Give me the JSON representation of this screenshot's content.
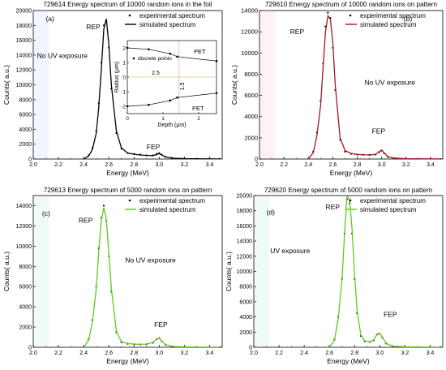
{
  "chart_data": [
    {
      "type": "line",
      "panel": "(a)",
      "title": "729614 Energy spectrum of 10000 random ions in the foil",
      "xlabel": "Energy (MeV)",
      "ylabel": "Counts( a.u.)",
      "xlim": [
        2.0,
        3.5
      ],
      "ylim": [
        0,
        20000
      ],
      "xticks": [
        "2.0",
        "2.2",
        "2.4",
        "2.6",
        "2.8",
        "3.0",
        "3.2",
        "3.4"
      ],
      "yticks": [
        "0",
        "2000",
        "4000",
        "6000",
        "8000",
        "10000",
        "12000",
        "14000",
        "16000",
        "18000",
        "20000"
      ],
      "legend": [
        "experimental spectrum",
        "simulated spectrum"
      ],
      "legend_position": "top-right",
      "annotations": [
        "REP",
        "FEP",
        "No UV exposure"
      ],
      "series": [
        {
          "name": "experimental spectrum",
          "style": "dots",
          "color": "#000000",
          "x": [
            2.4,
            2.44,
            2.47,
            2.5,
            2.52,
            2.54,
            2.56,
            2.58,
            2.6,
            2.62,
            2.66,
            2.7,
            2.75,
            2.8,
            2.85,
            2.9,
            2.95,
            2.98,
            3.0,
            3.02,
            3.05,
            3.1,
            3.2,
            3.3,
            3.4,
            3.48
          ],
          "y": [
            0,
            500,
            1500,
            3800,
            7500,
            13000,
            18000,
            18500,
            15000,
            9500,
            3500,
            1400,
            800,
            700,
            600,
            500,
            500,
            700,
            800,
            600,
            300,
            150,
            80,
            50,
            30,
            20
          ]
        },
        {
          "name": "simulated spectrum",
          "style": "line",
          "color": "#000000",
          "x": [
            2.4,
            2.44,
            2.47,
            2.5,
            2.52,
            2.54,
            2.56,
            2.58,
            2.6,
            2.62,
            2.66,
            2.7,
            2.75,
            2.8,
            2.85,
            2.9,
            2.95,
            2.98,
            3.0,
            3.02,
            3.05,
            3.1,
            3.2,
            3.3,
            3.4,
            3.48
          ],
          "y": [
            0,
            400,
            1300,
            3500,
            7000,
            12000,
            17500,
            18900,
            15500,
            10000,
            3800,
            1500,
            800,
            650,
            550,
            480,
            450,
            600,
            750,
            550,
            280,
            120,
            60,
            40,
            25,
            15
          ]
        }
      ],
      "inset": {
        "xlabel": "Depth (μm)",
        "ylabel": "Radius (μm)",
        "xlim": [
          0,
          2.5
        ],
        "ylim": [
          -2.5,
          2.5
        ],
        "xticks": [
          "0",
          "1",
          "2"
        ],
        "yticks": [
          "-2",
          "-1",
          "0",
          "1",
          "2"
        ],
        "legend": [
          "discrete points"
        ],
        "annotations": [
          "PET",
          "PET",
          "2.5",
          "1.5"
        ],
        "series": [
          {
            "name": "discrete points",
            "x": [
              0,
              0.6,
              1.2,
              1.4,
              2.5
            ],
            "y": [
              2.0,
              1.9,
              1.6,
              1.4,
              1.1
            ]
          },
          {
            "name": "discrete points",
            "x": [
              0,
              0.6,
              1.2,
              1.4,
              2.5
            ],
            "y": [
              -2.0,
              -1.9,
              -1.6,
              -1.4,
              -1.1
            ]
          }
        ]
      }
    },
    {
      "type": "line",
      "panel": "(b)",
      "title": "729610 Energy spectrum of 10000 random ions on pattern",
      "xlabel": "Energy (MeV)",
      "ylabel": "Counts( a.u.)",
      "xlim": [
        2.0,
        3.5
      ],
      "ylim": [
        0,
        14000
      ],
      "xticks": [
        "2.0",
        "2.2",
        "2.4",
        "2.6",
        "2.8",
        "3.0",
        "3.2",
        "3.4"
      ],
      "yticks": [
        "0",
        "2000",
        "4000",
        "6000",
        "8000",
        "10000",
        "12000",
        "14000"
      ],
      "legend": [
        "experimental spectrum",
        "simulated spectrum"
      ],
      "legend_position": "top-right",
      "annotations": [
        "REP",
        "No UV exposure",
        "FEP"
      ],
      "series": [
        {
          "name": "experimental spectrum",
          "style": "dots",
          "color": "#000000",
          "x": [
            2.4,
            2.44,
            2.47,
            2.5,
            2.52,
            2.54,
            2.56,
            2.58,
            2.6,
            2.62,
            2.66,
            2.7,
            2.75,
            2.8,
            2.85,
            2.9,
            2.95,
            2.98,
            3.0,
            3.02,
            3.05,
            3.1,
            3.2,
            3.3,
            3.4,
            3.48
          ],
          "y": [
            0,
            700,
            2500,
            5500,
            9000,
            12500,
            13800,
            13300,
            10500,
            6500,
            1800,
            700,
            500,
            420,
            400,
            380,
            420,
            650,
            800,
            550,
            200,
            80,
            40,
            20,
            15,
            10
          ]
        },
        {
          "name": "simulated spectrum",
          "style": "line",
          "color": "#a0181e",
          "x": [
            2.4,
            2.44,
            2.47,
            2.5,
            2.52,
            2.54,
            2.56,
            2.58,
            2.6,
            2.62,
            2.66,
            2.7,
            2.75,
            2.8,
            2.85,
            2.9,
            2.95,
            2.98,
            3.0,
            3.02,
            3.05,
            3.1,
            3.2,
            3.3,
            3.4,
            3.48
          ],
          "y": [
            0,
            600,
            2200,
            5000,
            8500,
            12000,
            13500,
            13200,
            11000,
            7000,
            2000,
            800,
            520,
            430,
            400,
            390,
            430,
            700,
            850,
            580,
            220,
            90,
            40,
            20,
            15,
            10
          ]
        }
      ]
    },
    {
      "type": "line",
      "panel": "(c)",
      "title": "729613 Energy spectrum of 5000 random ions on pattern",
      "xlabel": "Energy (MeV)",
      "ylabel": "Counts( a.u.)",
      "xlim": [
        2.0,
        3.5
      ],
      "ylim": [
        0,
        15000
      ],
      "xticks": [
        "2.0",
        "2.2",
        "2.4",
        "2.6",
        "2.8",
        "3.0",
        "3.2",
        "3.4"
      ],
      "yticks": [
        "0",
        "2000",
        "4000",
        "6000",
        "8000",
        "10000",
        "12000",
        "14000"
      ],
      "legend": [
        "experimental spectrum",
        "simulated spectrum"
      ],
      "legend_position": "top-right",
      "annotations": [
        "REP",
        "No UV exposure",
        "FEP"
      ],
      "series": [
        {
          "name": "experimental spectrum",
          "style": "dots",
          "color": "#000000",
          "x": [
            2.4,
            2.44,
            2.47,
            2.5,
            2.52,
            2.54,
            2.56,
            2.58,
            2.6,
            2.62,
            2.66,
            2.7,
            2.75,
            2.8,
            2.85,
            2.9,
            2.95,
            2.98,
            3.0,
            3.02,
            3.05,
            3.1,
            3.2,
            3.3,
            3.4,
            3.48
          ],
          "y": [
            0,
            800,
            2700,
            6000,
            9800,
            12800,
            14000,
            12500,
            9000,
            5500,
            1500,
            500,
            350,
            300,
            280,
            300,
            450,
            800,
            900,
            600,
            250,
            80,
            40,
            20,
            15,
            10
          ]
        },
        {
          "name": "simulated spectrum",
          "style": "line",
          "color": "#5ecb1e",
          "x": [
            2.4,
            2.44,
            2.47,
            2.5,
            2.52,
            2.54,
            2.56,
            2.58,
            2.6,
            2.62,
            2.66,
            2.7,
            2.75,
            2.8,
            2.85,
            2.9,
            2.95,
            2.98,
            3.0,
            3.02,
            3.05,
            3.1,
            3.2,
            3.3,
            3.4,
            3.48
          ],
          "y": [
            0,
            700,
            2500,
            5800,
            9500,
            12500,
            13800,
            12700,
            9300,
            5800,
            1600,
            550,
            370,
            310,
            290,
            310,
            480,
            820,
            920,
            620,
            260,
            90,
            40,
            20,
            15,
            10
          ]
        }
      ]
    },
    {
      "type": "line",
      "panel": "(d)",
      "title": "729620 Energy spectrum of 5000 random ions on pattern",
      "xlabel": "Energy (MeV)",
      "ylabel": "Counts( a.u.)",
      "xlim": [
        2.0,
        3.5
      ],
      "ylim": [
        0,
        20000
      ],
      "xticks": [
        "2.0",
        "2.2",
        "2.4",
        "2.6",
        "2.8",
        "3.0",
        "3.2",
        "3.4"
      ],
      "yticks": [
        "0",
        "2000",
        "4000",
        "6000",
        "8000",
        "10000",
        "12000",
        "14000",
        "16000",
        "18000",
        "20000"
      ],
      "legend": [
        "experimental spectrum",
        "simulated spectrum"
      ],
      "legend_position": "top-right",
      "annotations": [
        "REP",
        "UV exposure",
        "FEP"
      ],
      "series": [
        {
          "name": "experimental spectrum",
          "style": "dots",
          "color": "#000000",
          "x": [
            2.6,
            2.64,
            2.67,
            2.7,
            2.72,
            2.74,
            2.76,
            2.78,
            2.8,
            2.82,
            2.85,
            2.88,
            2.92,
            2.95,
            2.98,
            3.0,
            3.02,
            3.05,
            3.1,
            3.2,
            3.3,
            3.4,
            3.48
          ],
          "y": [
            0,
            1000,
            4000,
            9000,
            15000,
            19500,
            19000,
            15000,
            9000,
            4500,
            1500,
            800,
            700,
            900,
            1700,
            1800,
            1300,
            500,
            150,
            60,
            30,
            20,
            10
          ]
        },
        {
          "name": "simulated spectrum",
          "style": "line",
          "color": "#5ecb1e",
          "x": [
            2.6,
            2.64,
            2.67,
            2.7,
            2.72,
            2.74,
            2.76,
            2.78,
            2.8,
            2.82,
            2.85,
            2.88,
            2.92,
            2.95,
            2.98,
            3.0,
            3.02,
            3.05,
            3.1,
            3.2,
            3.3,
            3.4,
            3.48
          ],
          "y": [
            0,
            900,
            3800,
            8800,
            14800,
            20000,
            19500,
            15500,
            9500,
            4800,
            1600,
            850,
            720,
            950,
            1750,
            1850,
            1350,
            520,
            160,
            60,
            30,
            20,
            10
          ]
        }
      ]
    }
  ]
}
